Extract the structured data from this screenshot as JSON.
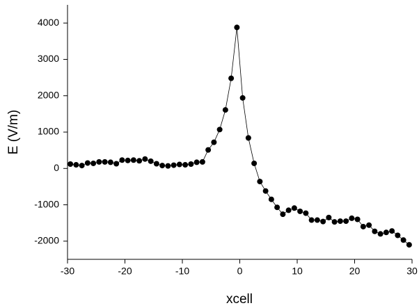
{
  "chart_data": {
    "type": "line",
    "x_label": "xcell",
    "y_label": "E (V/m)",
    "x": [
      -29.5,
      -28.5,
      -27.5,
      -26.5,
      -25.5,
      -24.5,
      -23.5,
      -22.5,
      -21.5,
      -20.5,
      -19.5,
      -18.5,
      -17.5,
      -16.5,
      -15.5,
      -14.5,
      -13.5,
      -12.5,
      -11.5,
      -10.5,
      -9.5,
      -8.5,
      -7.5,
      -6.5,
      -5.5,
      -4.5,
      -3.5,
      -2.5,
      -1.5,
      -0.5,
      0.5,
      1.5,
      2.5,
      3.5,
      4.5,
      5.5,
      6.5,
      7.5,
      8.5,
      9.5,
      10.5,
      11.5,
      12.5,
      13.5,
      14.5,
      15.5,
      16.5,
      17.5,
      18.5,
      19.5,
      20.5,
      21.5,
      22.5,
      23.5,
      24.5,
      25.5,
      26.5,
      27.5,
      28.5,
      29.5
    ],
    "values": [
      120,
      100,
      80,
      150,
      140,
      180,
      180,
      170,
      130,
      230,
      220,
      230,
      210,
      260,
      200,
      130,
      80,
      70,
      90,
      110,
      100,
      120,
      170,
      180,
      510,
      720,
      1070,
      1610,
      2480,
      3880,
      1940,
      840,
      140,
      -360,
      -620,
      -850,
      -1070,
      -1260,
      -1150,
      -1090,
      -1180,
      -1230,
      -1420,
      -1420,
      -1460,
      -1350,
      -1470,
      -1450,
      -1450,
      -1370,
      -1400,
      -1600,
      -1560,
      -1730,
      -1800,
      -1760,
      -1720,
      -1840,
      -1970,
      -2100
    ],
    "color": "#000000",
    "xlim": [
      -30,
      30
    ],
    "xticks": [
      -30,
      -20,
      -10,
      0,
      10,
      20,
      30
    ],
    "ylim": [
      -2500,
      4500
    ],
    "yticks": [
      -2000,
      -1000,
      0,
      1000,
      2000,
      3000,
      4000
    ],
    "grid": false
  }
}
